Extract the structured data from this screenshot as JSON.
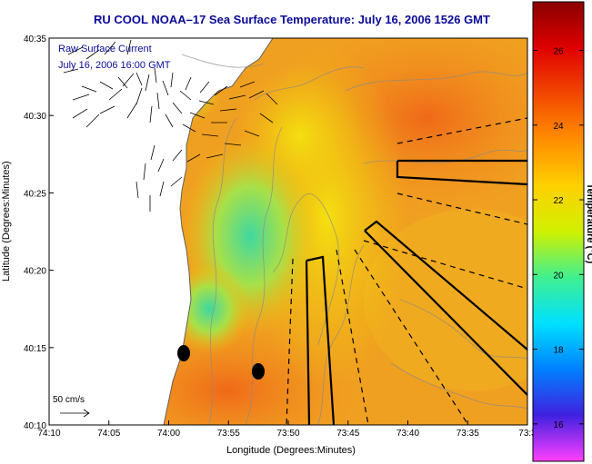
{
  "title": "RU COOL  NOAA–17  Sea Surface Temperature:  July 16, 2006 1526 GMT",
  "xlabel": "Longitude (Degrees:Minutes)",
  "ylabel": "Latitude (Degrees:Minutes)",
  "colorbar_label": "Temperature (°C)",
  "annotation_line1": "Raw Surface Current",
  "annotation_line2": "July 16, 2006 16:00 GMT",
  "scale_label": "50 cm/s",
  "x_ticks": [
    "74:10",
    "74:05",
    "74:00",
    "73:55",
    "73:50",
    "73:45",
    "73:40",
    "73:35",
    "73:3"
  ],
  "y_ticks": [
    "40:35",
    "40:30",
    "40:25",
    "40:20",
    "40:15",
    "40:10"
  ],
  "colorbar_ticks": [
    "26",
    "24",
    "22",
    "20",
    "18",
    "16"
  ],
  "colorbar_range": [
    15.0,
    27.3
  ],
  "colors": {
    "title": "#0a0a9a",
    "annotation": "#0a0a9a",
    "land": "#ffffff",
    "warm": "#f07820",
    "mid": "#f0c010",
    "cool": "#40d8a0"
  }
}
